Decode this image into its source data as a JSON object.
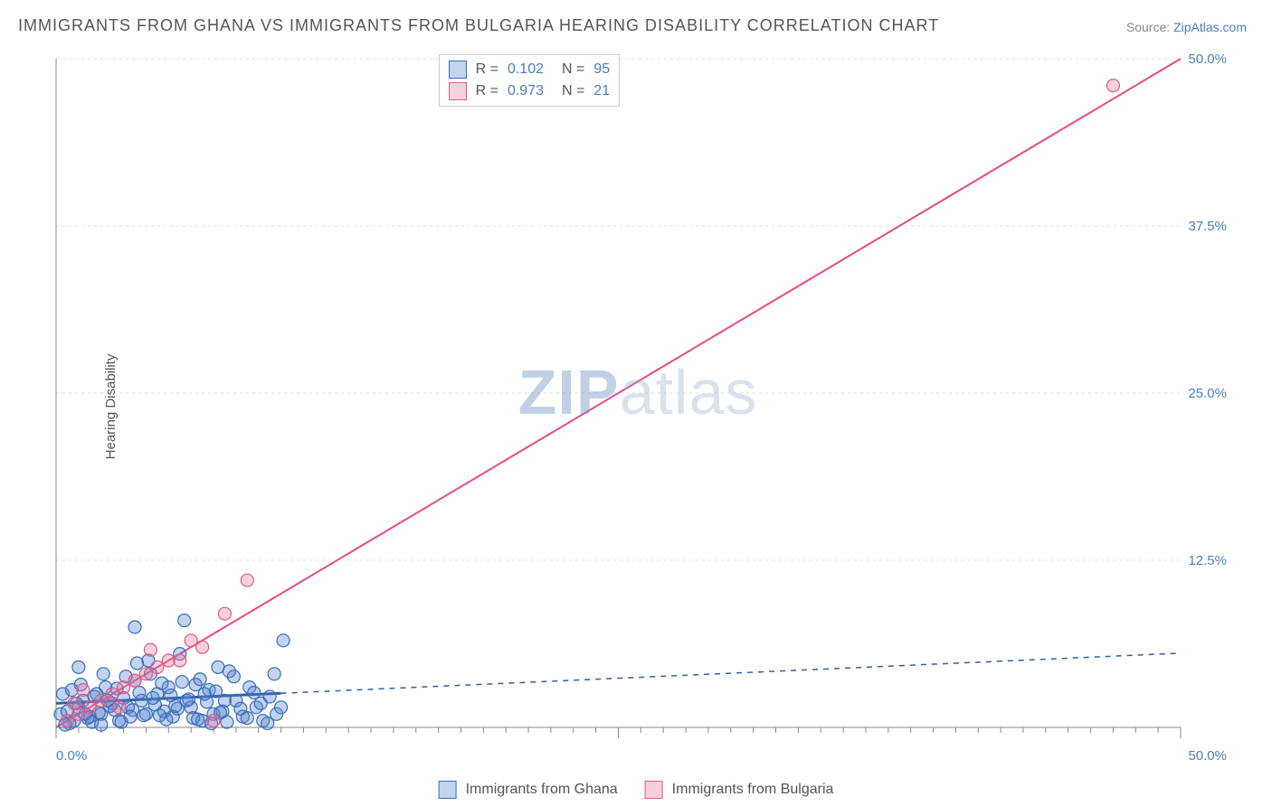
{
  "title": "IMMIGRANTS FROM GHANA VS IMMIGRANTS FROM BULGARIA HEARING DISABILITY CORRELATION CHART",
  "source": {
    "label": "Source: ",
    "site": "ZipAtlas.com"
  },
  "watermark": {
    "bold": "ZIP",
    "rest": "atlas"
  },
  "y_axis_label": "Hearing Disability",
  "chart": {
    "type": "scatter",
    "xlim": [
      0,
      50
    ],
    "ylim": [
      0,
      50
    ],
    "x_ticks_major": [
      0,
      25,
      50
    ],
    "x_ticks_minor_step": 1,
    "y_ticks": [
      0,
      12.5,
      25.0,
      37.5,
      50.0
    ],
    "y_tick_labels": [
      "0.0%",
      "12.5%",
      "25.0%",
      "37.5%",
      "50.0%"
    ],
    "x_origin_label": "0.0%",
    "x_max_label": "50.0%",
    "grid_color": "#dddddd",
    "axis_color": "#888888",
    "background_color": "#ffffff",
    "label_fontsize": 15,
    "label_color": "#4a7ebb"
  },
  "series": [
    {
      "name": "Immigrants from Ghana",
      "legend_label": "Immigrants from Ghana",
      "color_fill": "rgba(80,130,210,0.35)",
      "color_stroke": "#3a6db5",
      "marker_radius": 7,
      "R": "0.102",
      "N": "95",
      "trend": {
        "type": "dashed",
        "slope": 0.075,
        "intercept": 1.8,
        "color": "#2f5fa8",
        "width": 2,
        "dash": "6,6",
        "solid_until_x": 10
      },
      "points": [
        [
          0.2,
          1.0
        ],
        [
          0.5,
          1.2
        ],
        [
          0.8,
          0.5
        ],
        [
          1.0,
          1.5
        ],
        [
          1.2,
          2.0
        ],
        [
          1.5,
          0.8
        ],
        [
          1.8,
          2.5
        ],
        [
          2.0,
          1.0
        ],
        [
          2.2,
          3.0
        ],
        [
          2.5,
          1.8
        ],
        [
          2.8,
          0.5
        ],
        [
          3.0,
          2.2
        ],
        [
          3.2,
          1.5
        ],
        [
          3.5,
          3.5
        ],
        [
          3.8,
          2.0
        ],
        [
          4.0,
          1.0
        ],
        [
          4.2,
          4.0
        ],
        [
          4.5,
          2.5
        ],
        [
          4.8,
          1.2
        ],
        [
          5.0,
          3.0
        ],
        [
          5.2,
          0.8
        ],
        [
          5.5,
          5.5
        ],
        [
          5.8,
          2.0
        ],
        [
          6.0,
          1.5
        ],
        [
          6.2,
          3.2
        ],
        [
          6.5,
          0.5
        ],
        [
          6.8,
          2.8
        ],
        [
          7.0,
          1.0
        ],
        [
          7.2,
          4.5
        ],
        [
          7.5,
          2.0
        ],
        [
          0.3,
          2.5
        ],
        [
          0.6,
          0.3
        ],
        [
          0.9,
          1.8
        ],
        [
          1.1,
          3.2
        ],
        [
          1.4,
          0.7
        ],
        [
          1.7,
          2.3
        ],
        [
          1.9,
          1.1
        ],
        [
          2.1,
          4.0
        ],
        [
          2.4,
          1.6
        ],
        [
          2.7,
          2.9
        ],
        [
          2.9,
          0.4
        ],
        [
          3.1,
          3.8
        ],
        [
          3.4,
          1.3
        ],
        [
          3.7,
          2.6
        ],
        [
          3.9,
          0.9
        ],
        [
          4.1,
          5.0
        ],
        [
          4.4,
          1.7
        ],
        [
          4.7,
          3.3
        ],
        [
          4.9,
          0.6
        ],
        [
          5.1,
          2.4
        ],
        [
          5.4,
          1.4
        ],
        [
          5.7,
          8.0
        ],
        [
          5.9,
          2.1
        ],
        [
          6.1,
          0.7
        ],
        [
          6.4,
          3.6
        ],
        [
          6.7,
          1.9
        ],
        [
          6.9,
          0.3
        ],
        [
          7.1,
          2.7
        ],
        [
          7.4,
          1.2
        ],
        [
          7.7,
          4.2
        ],
        [
          8.0,
          2.0
        ],
        [
          8.3,
          0.8
        ],
        [
          8.6,
          3.0
        ],
        [
          8.9,
          1.5
        ],
        [
          9.2,
          0.5
        ],
        [
          9.5,
          2.3
        ],
        [
          9.8,
          1.0
        ],
        [
          10.1,
          6.5
        ],
        [
          0.4,
          0.2
        ],
        [
          0.7,
          2.8
        ],
        [
          1.3,
          1.0
        ],
        [
          1.6,
          0.4
        ],
        [
          2.3,
          2.0
        ],
        [
          2.6,
          1.3
        ],
        [
          3.3,
          0.8
        ],
        [
          3.6,
          4.8
        ],
        [
          4.3,
          2.2
        ],
        [
          4.6,
          0.9
        ],
        [
          5.3,
          1.6
        ],
        [
          5.6,
          3.4
        ],
        [
          6.3,
          0.6
        ],
        [
          6.6,
          2.5
        ],
        [
          7.3,
          1.1
        ],
        [
          7.6,
          0.4
        ],
        [
          7.9,
          3.8
        ],
        [
          8.2,
          1.4
        ],
        [
          8.5,
          0.7
        ],
        [
          8.8,
          2.6
        ],
        [
          9.1,
          1.8
        ],
        [
          9.4,
          0.3
        ],
        [
          9.7,
          4.0
        ],
        [
          10.0,
          1.5
        ],
        [
          3.5,
          7.5
        ],
        [
          2.0,
          0.2
        ],
        [
          1.0,
          4.5
        ]
      ]
    },
    {
      "name": "Immigrants from Bulgaria",
      "legend_label": "Immigrants from Bulgaria",
      "color_fill": "rgba(235,120,155,0.35)",
      "color_stroke": "#e05a8a",
      "marker_radius": 7,
      "R": "0.973",
      "N": "21",
      "trend": {
        "type": "solid",
        "slope": 1.0,
        "intercept": 0.0,
        "color": "#e84b85",
        "width": 2
      },
      "points": [
        [
          0.5,
          0.5
        ],
        [
          1.0,
          1.0
        ],
        [
          1.5,
          1.5
        ],
        [
          2.0,
          2.0
        ],
        [
          2.5,
          2.5
        ],
        [
          3.0,
          3.0
        ],
        [
          3.5,
          3.5
        ],
        [
          4.0,
          4.0
        ],
        [
          4.5,
          4.5
        ],
        [
          5.0,
          5.0
        ],
        [
          5.5,
          5.0
        ],
        [
          6.0,
          6.5
        ],
        [
          6.5,
          6.0
        ],
        [
          7.5,
          8.5
        ],
        [
          8.5,
          11.0
        ],
        [
          1.2,
          2.8
        ],
        [
          2.8,
          1.5
        ],
        [
          4.2,
          5.8
        ],
        [
          7.0,
          0.5
        ],
        [
          47.0,
          48.0
        ],
        [
          0.8,
          1.8
        ]
      ]
    }
  ],
  "stats_box": {
    "rows": [
      {
        "swatch_fill": "rgba(80,130,210,0.35)",
        "swatch_stroke": "#3a6db5",
        "R_label": "R =",
        "R_value": "0.102",
        "N_label": "N =",
        "N_value": "95"
      },
      {
        "swatch_fill": "rgba(235,120,155,0.35)",
        "swatch_stroke": "#e05a8a",
        "R_label": "R =",
        "R_value": "0.973",
        "N_label": "N =",
        "N_value": "21"
      }
    ],
    "text_color": "#555555",
    "value_color": "#4a7ebb"
  }
}
